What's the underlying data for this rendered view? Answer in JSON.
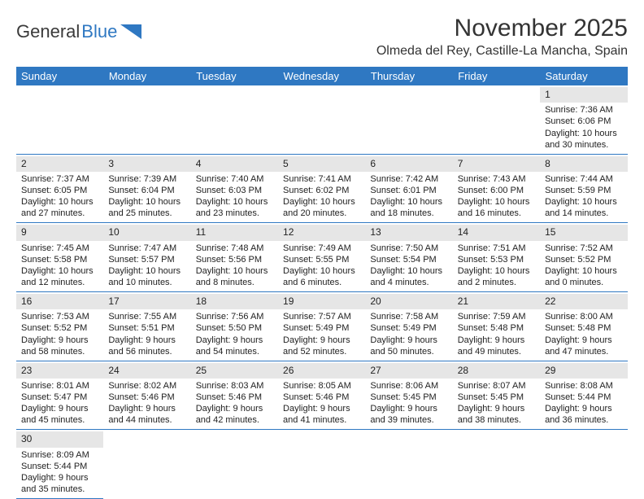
{
  "logo": {
    "part1": "General",
    "part2": "Blue"
  },
  "title": "November 2025",
  "location": "Olmeda del Rey, Castille-La Mancha, Spain",
  "colors": {
    "header_bg": "#2f78c2",
    "header_text": "#ffffff",
    "daynum_bg": "#e6e6e6",
    "border": "#2f78c2",
    "text": "#222222",
    "logo_gray": "#3a3a3a",
    "logo_blue": "#2f78c2",
    "page_bg": "#ffffff"
  },
  "typography": {
    "title_fontsize": 30,
    "location_fontsize": 16,
    "header_fontsize": 13,
    "cell_fontsize": 11,
    "daynum_fontsize": 12
  },
  "day_headers": [
    "Sunday",
    "Monday",
    "Tuesday",
    "Wednesday",
    "Thursday",
    "Friday",
    "Saturday"
  ],
  "weeks": [
    [
      null,
      null,
      null,
      null,
      null,
      null,
      {
        "n": "1",
        "sr": "Sunrise: 7:36 AM",
        "ss": "Sunset: 6:06 PM",
        "dl": "Daylight: 10 hours and 30 minutes."
      }
    ],
    [
      {
        "n": "2",
        "sr": "Sunrise: 7:37 AM",
        "ss": "Sunset: 6:05 PM",
        "dl": "Daylight: 10 hours and 27 minutes."
      },
      {
        "n": "3",
        "sr": "Sunrise: 7:39 AM",
        "ss": "Sunset: 6:04 PM",
        "dl": "Daylight: 10 hours and 25 minutes."
      },
      {
        "n": "4",
        "sr": "Sunrise: 7:40 AM",
        "ss": "Sunset: 6:03 PM",
        "dl": "Daylight: 10 hours and 23 minutes."
      },
      {
        "n": "5",
        "sr": "Sunrise: 7:41 AM",
        "ss": "Sunset: 6:02 PM",
        "dl": "Daylight: 10 hours and 20 minutes."
      },
      {
        "n": "6",
        "sr": "Sunrise: 7:42 AM",
        "ss": "Sunset: 6:01 PM",
        "dl": "Daylight: 10 hours and 18 minutes."
      },
      {
        "n": "7",
        "sr": "Sunrise: 7:43 AM",
        "ss": "Sunset: 6:00 PM",
        "dl": "Daylight: 10 hours and 16 minutes."
      },
      {
        "n": "8",
        "sr": "Sunrise: 7:44 AM",
        "ss": "Sunset: 5:59 PM",
        "dl": "Daylight: 10 hours and 14 minutes."
      }
    ],
    [
      {
        "n": "9",
        "sr": "Sunrise: 7:45 AM",
        "ss": "Sunset: 5:58 PM",
        "dl": "Daylight: 10 hours and 12 minutes."
      },
      {
        "n": "10",
        "sr": "Sunrise: 7:47 AM",
        "ss": "Sunset: 5:57 PM",
        "dl": "Daylight: 10 hours and 10 minutes."
      },
      {
        "n": "11",
        "sr": "Sunrise: 7:48 AM",
        "ss": "Sunset: 5:56 PM",
        "dl": "Daylight: 10 hours and 8 minutes."
      },
      {
        "n": "12",
        "sr": "Sunrise: 7:49 AM",
        "ss": "Sunset: 5:55 PM",
        "dl": "Daylight: 10 hours and 6 minutes."
      },
      {
        "n": "13",
        "sr": "Sunrise: 7:50 AM",
        "ss": "Sunset: 5:54 PM",
        "dl": "Daylight: 10 hours and 4 minutes."
      },
      {
        "n": "14",
        "sr": "Sunrise: 7:51 AM",
        "ss": "Sunset: 5:53 PM",
        "dl": "Daylight: 10 hours and 2 minutes."
      },
      {
        "n": "15",
        "sr": "Sunrise: 7:52 AM",
        "ss": "Sunset: 5:52 PM",
        "dl": "Daylight: 10 hours and 0 minutes."
      }
    ],
    [
      {
        "n": "16",
        "sr": "Sunrise: 7:53 AM",
        "ss": "Sunset: 5:52 PM",
        "dl": "Daylight: 9 hours and 58 minutes."
      },
      {
        "n": "17",
        "sr": "Sunrise: 7:55 AM",
        "ss": "Sunset: 5:51 PM",
        "dl": "Daylight: 9 hours and 56 minutes."
      },
      {
        "n": "18",
        "sr": "Sunrise: 7:56 AM",
        "ss": "Sunset: 5:50 PM",
        "dl": "Daylight: 9 hours and 54 minutes."
      },
      {
        "n": "19",
        "sr": "Sunrise: 7:57 AM",
        "ss": "Sunset: 5:49 PM",
        "dl": "Daylight: 9 hours and 52 minutes."
      },
      {
        "n": "20",
        "sr": "Sunrise: 7:58 AM",
        "ss": "Sunset: 5:49 PM",
        "dl": "Daylight: 9 hours and 50 minutes."
      },
      {
        "n": "21",
        "sr": "Sunrise: 7:59 AM",
        "ss": "Sunset: 5:48 PM",
        "dl": "Daylight: 9 hours and 49 minutes."
      },
      {
        "n": "22",
        "sr": "Sunrise: 8:00 AM",
        "ss": "Sunset: 5:48 PM",
        "dl": "Daylight: 9 hours and 47 minutes."
      }
    ],
    [
      {
        "n": "23",
        "sr": "Sunrise: 8:01 AM",
        "ss": "Sunset: 5:47 PM",
        "dl": "Daylight: 9 hours and 45 minutes."
      },
      {
        "n": "24",
        "sr": "Sunrise: 8:02 AM",
        "ss": "Sunset: 5:46 PM",
        "dl": "Daylight: 9 hours and 44 minutes."
      },
      {
        "n": "25",
        "sr": "Sunrise: 8:03 AM",
        "ss": "Sunset: 5:46 PM",
        "dl": "Daylight: 9 hours and 42 minutes."
      },
      {
        "n": "26",
        "sr": "Sunrise: 8:05 AM",
        "ss": "Sunset: 5:46 PM",
        "dl": "Daylight: 9 hours and 41 minutes."
      },
      {
        "n": "27",
        "sr": "Sunrise: 8:06 AM",
        "ss": "Sunset: 5:45 PM",
        "dl": "Daylight: 9 hours and 39 minutes."
      },
      {
        "n": "28",
        "sr": "Sunrise: 8:07 AM",
        "ss": "Sunset: 5:45 PM",
        "dl": "Daylight: 9 hours and 38 minutes."
      },
      {
        "n": "29",
        "sr": "Sunrise: 8:08 AM",
        "ss": "Sunset: 5:44 PM",
        "dl": "Daylight: 9 hours and 36 minutes."
      }
    ],
    [
      {
        "n": "30",
        "sr": "Sunrise: 8:09 AM",
        "ss": "Sunset: 5:44 PM",
        "dl": "Daylight: 9 hours and 35 minutes."
      },
      null,
      null,
      null,
      null,
      null,
      null
    ]
  ]
}
